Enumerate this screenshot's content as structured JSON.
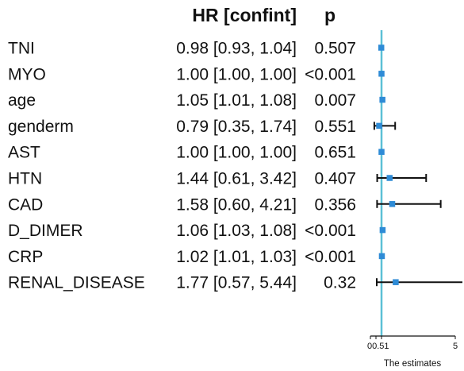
{
  "colors": {
    "reference_line": "#5bc0d6",
    "point": "#2e8bd6",
    "ci_line": "#111111",
    "text": "#111111"
  },
  "chart_data": {
    "type": "forest",
    "columns": {
      "estimate_header": "HR [confint]",
      "p_header": "p"
    },
    "xlabel": "The estimates",
    "reference_value": 1,
    "xlim": [
      0,
      5
    ],
    "x_ticks": [
      0,
      0.5,
      1,
      5
    ],
    "x_tick_labels": [
      "0",
      "0.5",
      "1",
      "5"
    ],
    "rows": [
      {
        "variable": "TNI",
        "hr": 0.98,
        "ci_low": 0.93,
        "ci_high": 1.04,
        "hr_text": "0.98 [0.93, 1.04]",
        "p_text": "0.507"
      },
      {
        "variable": "MYO",
        "hr": 1.0,
        "ci_low": 1.0,
        "ci_high": 1.0,
        "hr_text": "1.00 [1.00, 1.00]",
        "p_text": "<0.001"
      },
      {
        "variable": "age",
        "hr": 1.05,
        "ci_low": 1.01,
        "ci_high": 1.08,
        "hr_text": "1.05 [1.01, 1.08]",
        "p_text": "0.007"
      },
      {
        "variable": "genderm",
        "hr": 0.79,
        "ci_low": 0.35,
        "ci_high": 1.74,
        "hr_text": "0.79 [0.35, 1.74]",
        "p_text": "0.551"
      },
      {
        "variable": "AST",
        "hr": 1.0,
        "ci_low": 1.0,
        "ci_high": 1.0,
        "hr_text": "1.00 [1.00, 1.00]",
        "p_text": "0.651"
      },
      {
        "variable": "HTN",
        "hr": 1.44,
        "ci_low": 0.61,
        "ci_high": 3.42,
        "hr_text": "1.44 [0.61, 3.42]",
        "p_text": "0.407"
      },
      {
        "variable": "CAD",
        "hr": 1.58,
        "ci_low": 0.6,
        "ci_high": 4.21,
        "hr_text": "1.58 [0.60, 4.21]",
        "p_text": "0.356"
      },
      {
        "variable": "D_DIMER",
        "hr": 1.06,
        "ci_low": 1.03,
        "ci_high": 1.08,
        "hr_text": "1.06 [1.03, 1.08]",
        "p_text": "<0.001"
      },
      {
        "variable": "CRP",
        "hr": 1.02,
        "ci_low": 1.01,
        "ci_high": 1.03,
        "hr_text": "1.02 [1.01, 1.03]",
        "p_text": "<0.001"
      },
      {
        "variable": "RENAL_DISEASE",
        "hr": 1.77,
        "ci_low": 0.57,
        "ci_high": 5.44,
        "hr_text": "1.77 [0.57, 5.44]",
        "p_text": "0.32"
      }
    ]
  }
}
